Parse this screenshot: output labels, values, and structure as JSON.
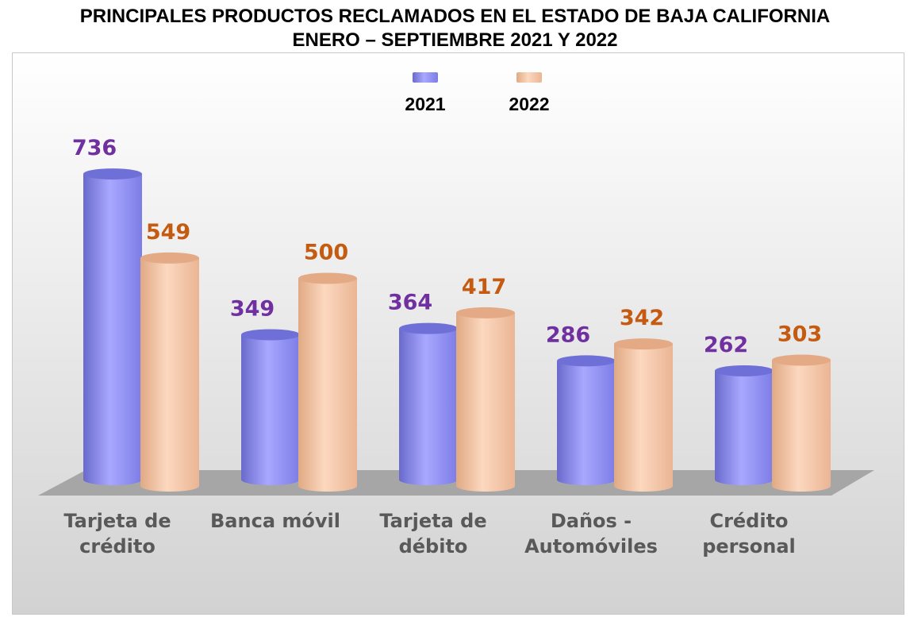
{
  "title": {
    "line1": "PRINCIPALES PRODUCTOS RECLAMADOS EN EL ESTADO DE BAJA CALIFORNIA",
    "line2": "ENERO – SEPTIEMBRE 2021 Y 2022"
  },
  "colors": {
    "s2021_fill": "#a0a0ff",
    "s2021_dark": "#6f6fd8",
    "s2021_label": "#7030a0",
    "s2022_fill": "#fbd2b4",
    "s2022_dark": "#e3aa85",
    "s2022_label": "#c55a11",
    "floor": "#a6a6a6"
  },
  "chart_data": {
    "type": "bar",
    "title": "PRINCIPALES PRODUCTOS RECLAMADOS EN EL ESTADO DE BAJA CALIFORNIA ENERO – SEPTIEMBRE 2021 Y 2022",
    "categories": [
      [
        "Tarjeta de",
        "crédito"
      ],
      [
        "Banca móvil"
      ],
      [
        "Tarjeta de",
        "débito"
      ],
      [
        "Daños -",
        "Automóviles"
      ],
      [
        "Crédito",
        "personal"
      ]
    ],
    "series": [
      {
        "name": "2021",
        "values": [
          736,
          349,
          364,
          286,
          262
        ]
      },
      {
        "name": "2022",
        "values": [
          549,
          500,
          417,
          342,
          303
        ]
      }
    ],
    "xlabel": "",
    "ylabel": "",
    "ylim": [
      0,
      800
    ],
    "grid": false,
    "legend": "top-center"
  }
}
